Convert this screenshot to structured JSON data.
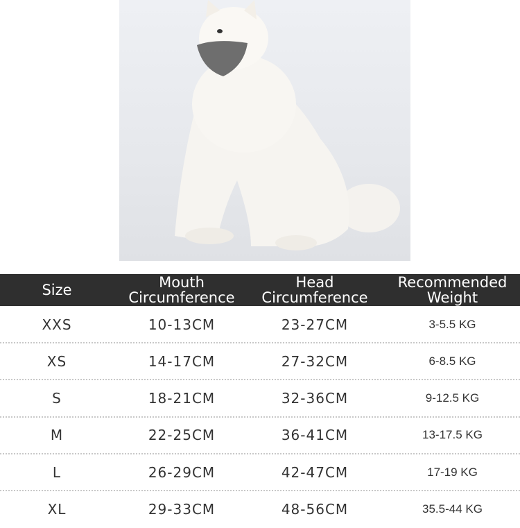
{
  "table": {
    "headers": [
      {
        "line1": "Size",
        "line2": ""
      },
      {
        "line1": "Mouth",
        "line2": "Circumference"
      },
      {
        "line1": "Head",
        "line2": "Circumference"
      },
      {
        "line1": "Recommended",
        "line2": "Weight"
      }
    ],
    "rows": [
      [
        "XXS",
        "10-13CM",
        "23-27CM",
        "3-5.5 KG"
      ],
      [
        "XS",
        "14-17CM",
        "27-32CM",
        "6-8.5 KG"
      ],
      [
        "S",
        "18-21CM",
        "32-36CM",
        "9-12.5 KG"
      ],
      [
        "M",
        "22-25CM",
        "36-41CM",
        "13-17.5 KG"
      ],
      [
        "L",
        "26-29CM",
        "42-47CM",
        "17-19 KG"
      ],
      [
        "XL",
        "29-33CM",
        "48-56CM",
        "35.5-44 KG"
      ]
    ]
  },
  "colors": {
    "header_bg": "#2f2f2f",
    "muzzle": "#6e6e6e"
  }
}
